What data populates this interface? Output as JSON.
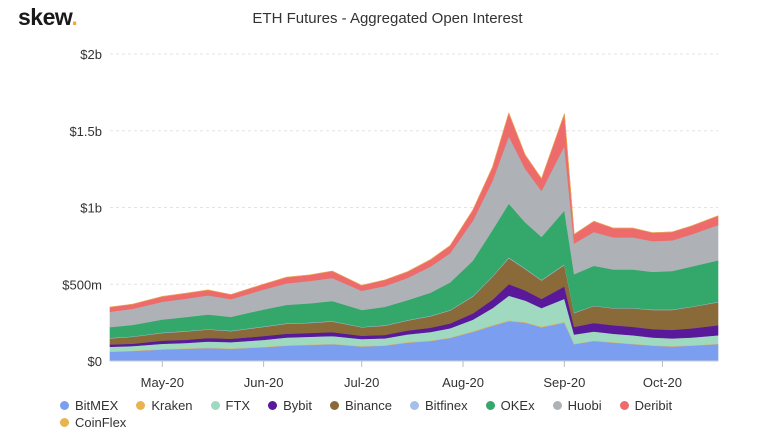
{
  "brand": {
    "name": "skew",
    "dot": "."
  },
  "chart_data": {
    "type": "area",
    "stacked": true,
    "title": "ETH Futures - Aggregated Open Interest",
    "xlabel": "",
    "ylabel": "",
    "ylim": [
      0,
      2000
    ],
    "y_unit": "USD millions",
    "y_ticks": [
      0,
      500,
      1000,
      1500,
      2000
    ],
    "y_tick_labels": [
      "$0",
      "$500m",
      "$1b",
      "$1.5b",
      "$2b"
    ],
    "x_tick_labels": [
      "May-20",
      "Jun-20",
      "Jul-20",
      "Aug-20",
      "Sep-20",
      "Oct-20"
    ],
    "x_tick_dates": [
      "2020-05-01",
      "2020-06-01",
      "2020-07-01",
      "2020-08-01",
      "2020-09-01",
      "2020-10-01"
    ],
    "grid": true,
    "legend_position": "bottom",
    "x": [
      "2020-04-15",
      "2020-04-22",
      "2020-05-01",
      "2020-05-08",
      "2020-05-15",
      "2020-05-22",
      "2020-06-01",
      "2020-06-08",
      "2020-06-15",
      "2020-06-22",
      "2020-07-01",
      "2020-07-08",
      "2020-07-15",
      "2020-07-22",
      "2020-07-28",
      "2020-08-04",
      "2020-08-10",
      "2020-08-15",
      "2020-08-20",
      "2020-08-25",
      "2020-09-01",
      "2020-09-04",
      "2020-09-10",
      "2020-09-16",
      "2020-09-22",
      "2020-09-28",
      "2020-10-04",
      "2020-10-10",
      "2020-10-18"
    ],
    "series": [
      {
        "name": "BitMEX",
        "color": "#7b9ef0",
        "values": [
          60,
          65,
          75,
          80,
          85,
          80,
          90,
          100,
          105,
          110,
          95,
          100,
          120,
          130,
          150,
          190,
          230,
          260,
          250,
          220,
          250,
          110,
          130,
          120,
          110,
          100,
          95,
          100,
          110
        ]
      },
      {
        "name": "Kraken",
        "color": "#e8b44f",
        "values": [
          3,
          3,
          3,
          3,
          3,
          3,
          3,
          3,
          3,
          3,
          3,
          3,
          4,
          4,
          4,
          5,
          5,
          6,
          5,
          5,
          6,
          3,
          3,
          3,
          3,
          3,
          3,
          3,
          3
        ]
      },
      {
        "name": "FTX",
        "color": "#9ed9c0",
        "values": [
          30,
          30,
          35,
          35,
          40,
          40,
          45,
          50,
          50,
          50,
          45,
          45,
          50,
          55,
          60,
          75,
          110,
          160,
          140,
          120,
          150,
          60,
          60,
          55,
          55,
          50,
          50,
          50,
          55
        ]
      },
      {
        "name": "Bybit",
        "color": "#5a189a",
        "values": [
          15,
          15,
          20,
          20,
          22,
          22,
          25,
          25,
          25,
          25,
          22,
          22,
          25,
          28,
          30,
          40,
          55,
          75,
          65,
          60,
          80,
          50,
          55,
          55,
          55,
          55,
          55,
          60,
          65
        ]
      },
      {
        "name": "Binance",
        "color": "#8b6a3a",
        "values": [
          40,
          45,
          50,
          55,
          55,
          50,
          60,
          65,
          65,
          70,
          55,
          60,
          65,
          75,
          85,
          110,
          150,
          170,
          140,
          120,
          140,
          90,
          110,
          110,
          120,
          125,
          130,
          140,
          150
        ]
      },
      {
        "name": "Bitfinex",
        "color": "#a6bfe8",
        "values": [
          3,
          3,
          3,
          3,
          3,
          3,
          3,
          3,
          3,
          3,
          3,
          3,
          3,
          3,
          3,
          4,
          4,
          5,
          4,
          4,
          5,
          3,
          3,
          3,
          3,
          3,
          3,
          3,
          3
        ]
      },
      {
        "name": "OKEx",
        "color": "#33a86a",
        "values": [
          70,
          75,
          85,
          90,
          95,
          90,
          110,
          120,
          125,
          130,
          110,
          120,
          130,
          150,
          180,
          230,
          300,
          350,
          300,
          280,
          350,
          250,
          260,
          250,
          250,
          245,
          250,
          260,
          270
        ]
      },
      {
        "name": "Huobi",
        "color": "#aeb2b6",
        "values": [
          100,
          105,
          115,
          120,
          125,
          115,
          130,
          140,
          145,
          150,
          125,
          135,
          145,
          170,
          190,
          260,
          320,
          440,
          350,
          300,
          420,
          200,
          220,
          210,
          210,
          200,
          200,
          210,
          230
        ]
      },
      {
        "name": "Deribit",
        "color": "#ee6b6b",
        "values": [
          30,
          30,
          35,
          35,
          35,
          30,
          35,
          40,
          40,
          45,
          35,
          40,
          40,
          45,
          50,
          70,
          90,
          150,
          90,
          80,
          210,
          60,
          70,
          60,
          60,
          55,
          55,
          55,
          60
        ]
      },
      {
        "name": "CoinFlex",
        "color": "#e8b44f",
        "values": [
          0,
          0,
          0,
          0,
          0,
          0,
          0,
          0,
          0,
          0,
          0,
          0,
          0,
          0,
          0,
          0,
          0,
          0,
          0,
          0,
          0,
          0,
          0,
          0,
          0,
          0,
          0,
          0,
          0
        ]
      }
    ]
  }
}
